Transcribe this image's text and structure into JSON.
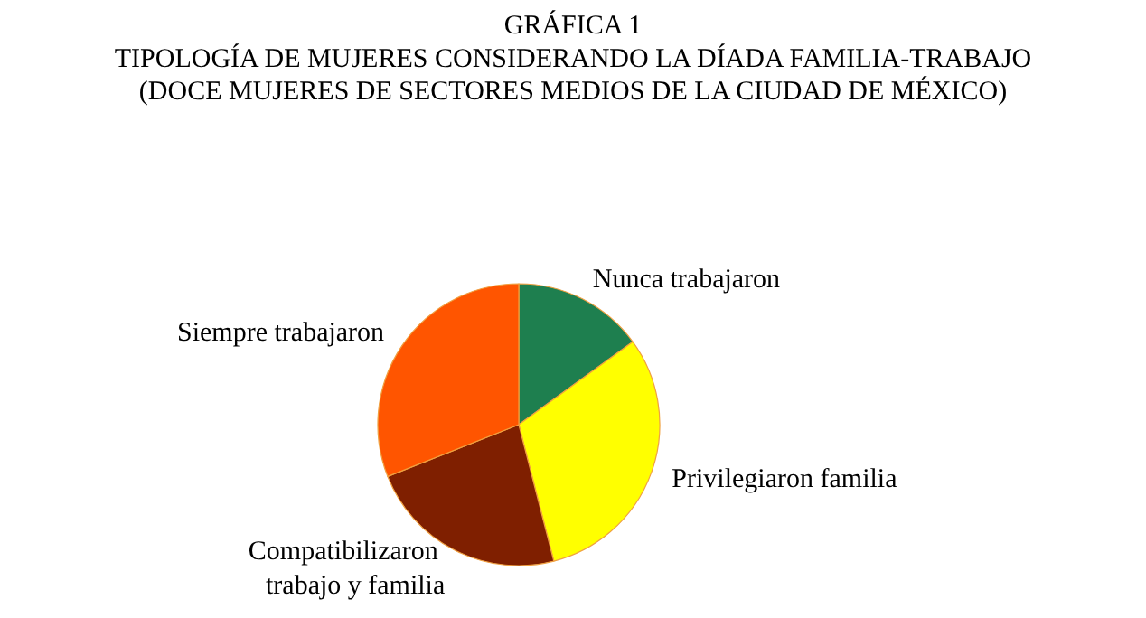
{
  "chart_data": {
    "type": "pie",
    "title": "GRÁFICA 1",
    "subtitle": "TIPOLOGÍA DE MUJERES CONSIDERANDO LA DÍADA FAMILIA-TRABAJO\n(DOCE MUJERES DE SECTORES MEDIOS DE LA CIUDAD DE MÉXICO)",
    "categories": [
      "Nunca trabajaron",
      "Privilegiaron familia",
      "Compatibilizaron trabajo y familia",
      "Siempre trabajaron"
    ],
    "values": [
      15,
      31,
      23,
      31
    ],
    "colors": [
      "#1e7f4f",
      "#ffff00",
      "#7f1f00",
      "#ff5500"
    ],
    "legend": false
  }
}
